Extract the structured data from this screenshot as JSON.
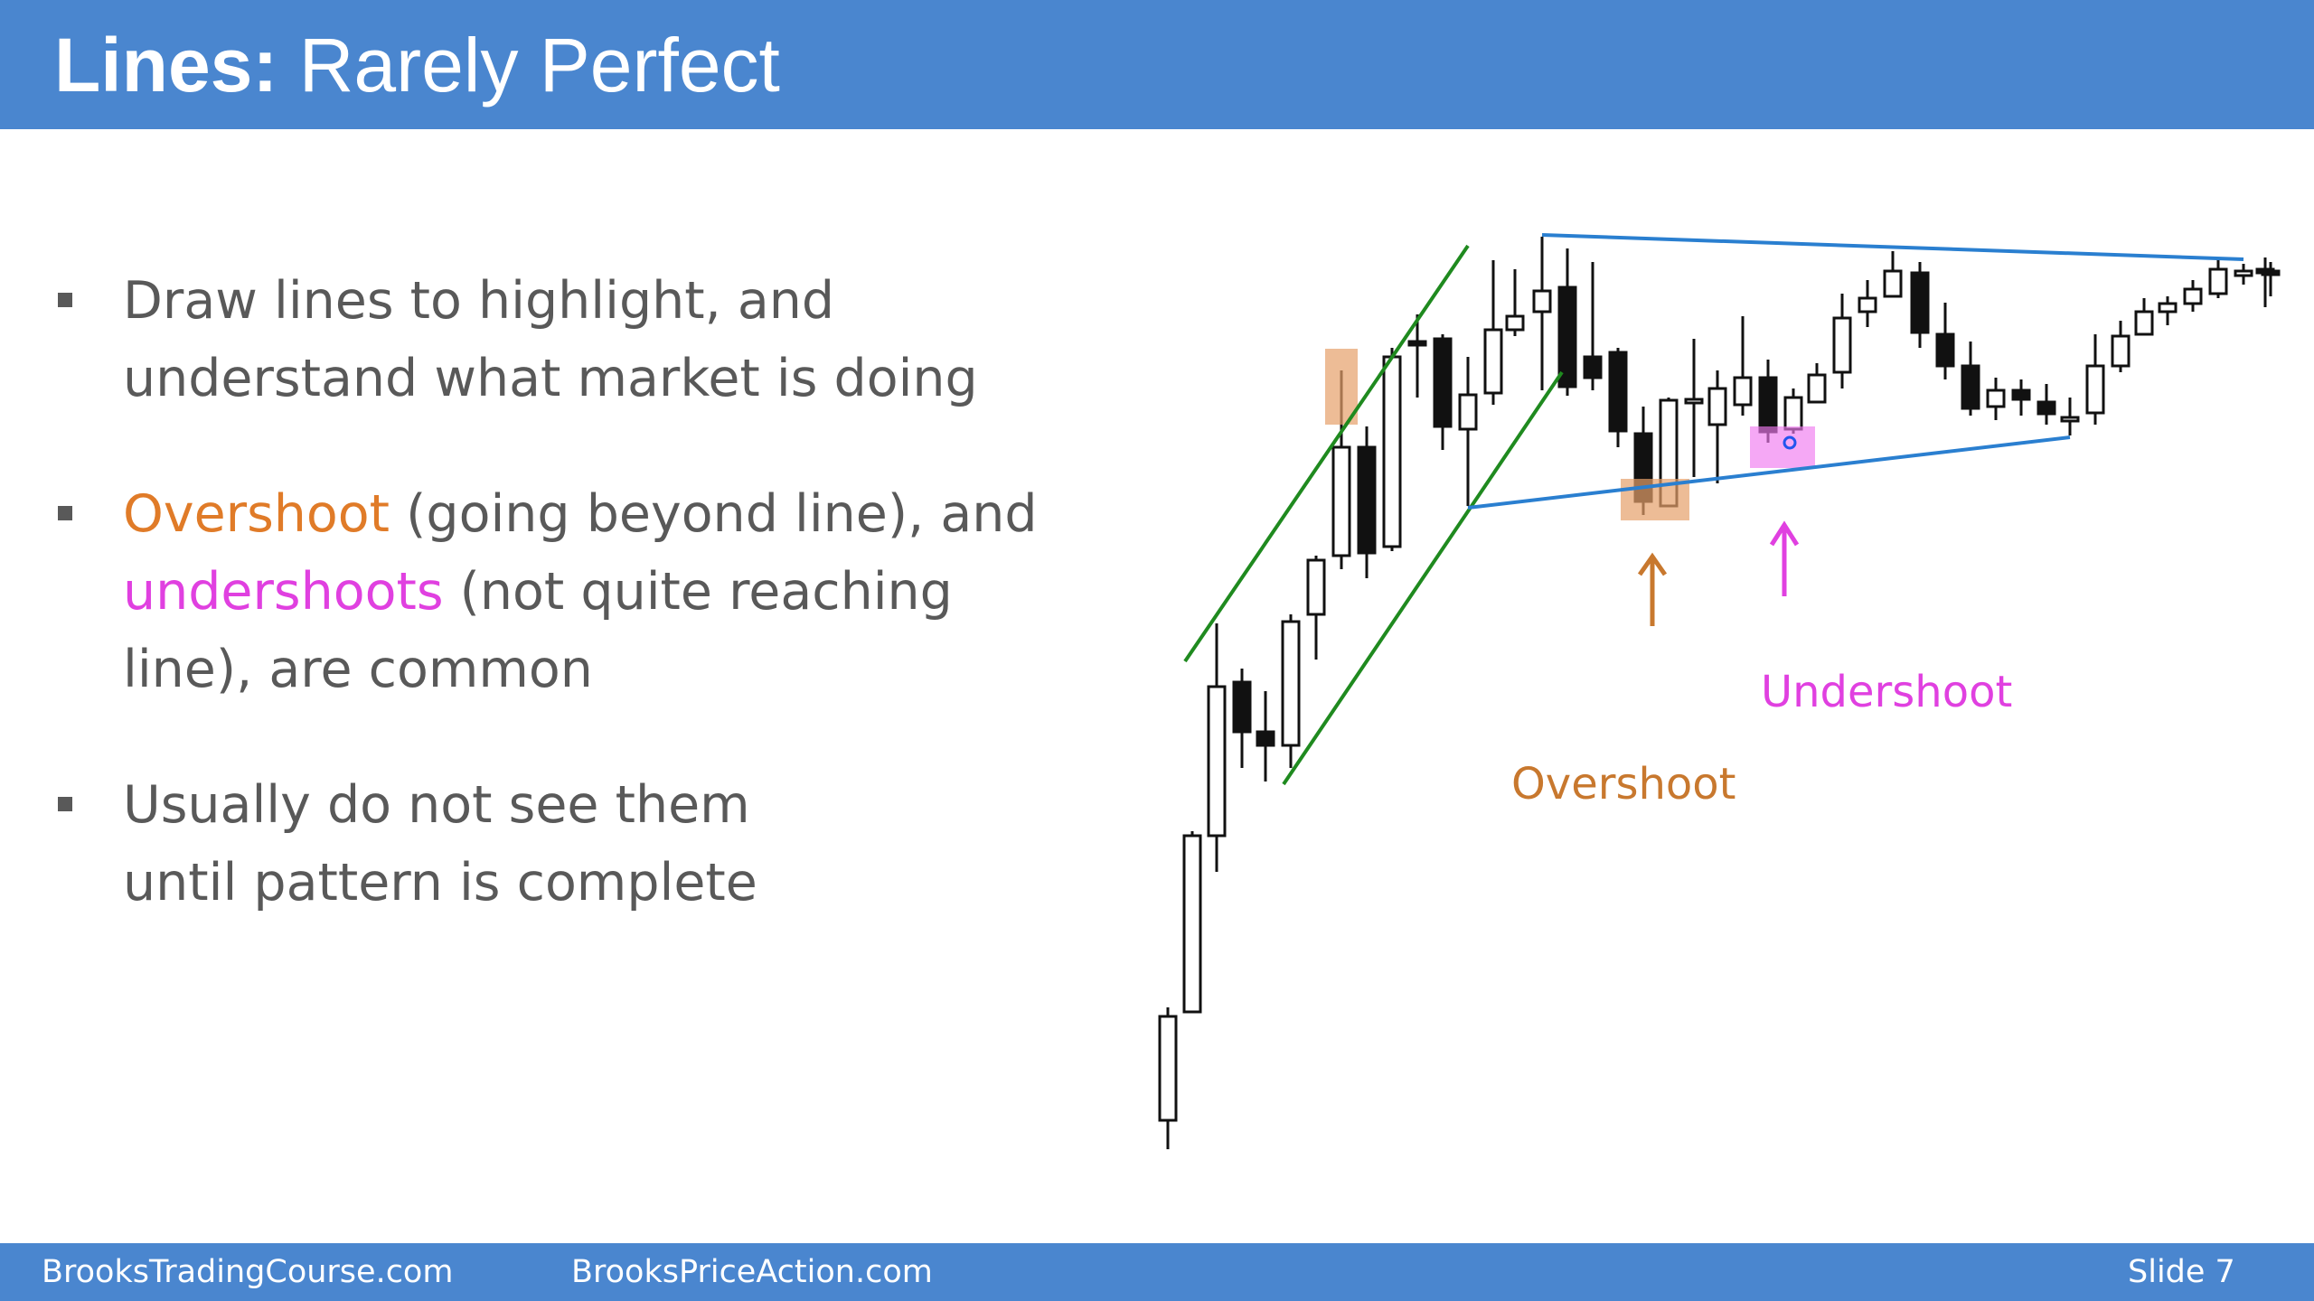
{
  "header": {
    "title_bold": "Lines:",
    "title_rest": " Rarely Perfect"
  },
  "bullets": {
    "b1": {
      "l1": "Draw lines to highlight, and",
      "l2": "understand what market is doing"
    },
    "b2": {
      "overshoot": "Overshoot",
      "l1_rest": " (going beyond line), and",
      "undershoots": "undershoots",
      "l2_rest": " (not quite reaching",
      "l3": "line), are common"
    },
    "b3": {
      "l1": "Usually do not see them",
      "l2": "until pattern is complete"
    }
  },
  "chart": {
    "undershoot_label": "Undershoot",
    "overshoot_label": "Overshoot",
    "colors": {
      "channel": "#1f8a1f",
      "triangle": "#2a7fd0",
      "overshoot": "#c8782e",
      "undershoot": "#e040e0"
    }
  },
  "footer": {
    "left": "BrooksTradingCourse.com",
    "center": "BrooksPriceAction.com",
    "slide": "Slide  7"
  }
}
